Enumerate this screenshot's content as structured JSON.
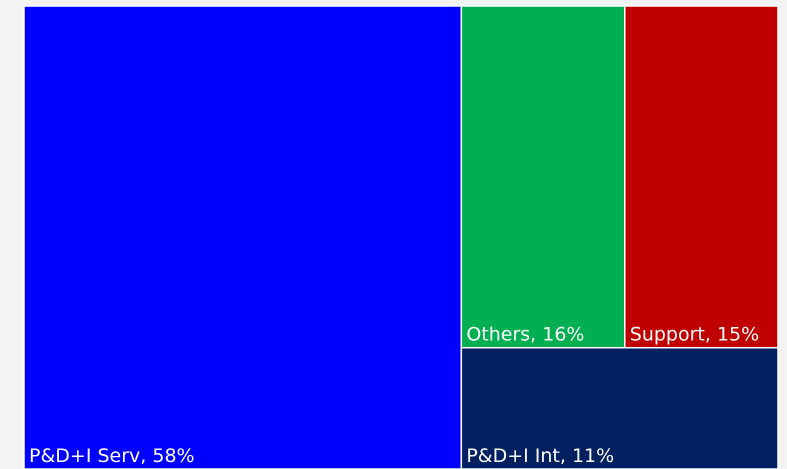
{
  "chart_data": {
    "type": "treemap",
    "values": [
      58,
      16,
      15,
      11
    ],
    "value_labels": [
      "P&D+I Serv, 58%",
      "Others, 16%",
      "Support, 15%",
      "P&D+I Int, 11%"
    ],
    "colors": [
      "#0000ff",
      "#00b050",
      "#c00000",
      "#002060"
    ]
  }
}
